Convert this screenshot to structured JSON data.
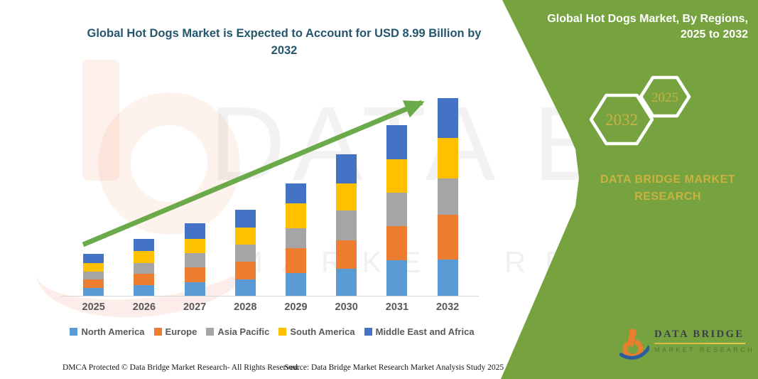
{
  "chart_data": {
    "type": "bar",
    "stacked": true,
    "title": "Global Hot Dogs Market is Expected to Account for USD 8.99 Billion by 2032",
    "title_lines": [
      "Global Hot Dogs Market is Expected to Account for USD 8.99 Billion by",
      "2032"
    ],
    "unit": "USD Billion",
    "categories": [
      "2025",
      "2026",
      "2027",
      "2028",
      "2029",
      "2030",
      "2031",
      "2032"
    ],
    "series": [
      {
        "name": "North America",
        "color": "#5b9bd5",
        "values": [
          0.36,
          0.48,
          0.62,
          0.74,
          1.02,
          1.24,
          1.61,
          1.65
        ]
      },
      {
        "name": "Europe",
        "color": "#ed7d31",
        "values": [
          0.38,
          0.52,
          0.66,
          0.8,
          1.13,
          1.29,
          1.56,
          2.02
        ]
      },
      {
        "name": "Asia Pacific",
        "color": "#a5a5a5",
        "values": [
          0.37,
          0.5,
          0.65,
          0.78,
          0.91,
          1.35,
          1.51,
          1.65
        ]
      },
      {
        "name": "South America",
        "color": "#ffc000",
        "values": [
          0.38,
          0.52,
          0.67,
          0.79,
          1.13,
          1.24,
          1.51,
          1.86
        ]
      },
      {
        "name": "Middle East and Africa",
        "color": "#4472c4",
        "values": [
          0.41,
          0.55,
          0.68,
          0.8,
          0.92,
          1.32,
          1.56,
          1.81
        ]
      }
    ],
    "totals": [
      1.9,
      2.57,
      3.28,
      3.91,
      5.11,
      6.44,
      7.75,
      8.99
    ],
    "ylim": [
      0,
      9
    ],
    "gridlines": false,
    "y_axis_visible": false,
    "legend_position": "bottom",
    "trend_arrow": "green upward arrow across bar tops",
    "arrow_color": "#6aaa4a"
  },
  "sidebar": {
    "header_lines": [
      "Global Hot Dogs Market, By Regions,",
      "2025 to 2032"
    ],
    "hexagons": [
      "2032",
      "2025"
    ],
    "brand_lines": [
      "DATA BRIDGE MARKET",
      "RESEARCH"
    ],
    "panel_color": "#76a33f",
    "accent_gold": "#c8b240",
    "logo": {
      "title": "DATA BRIDGE",
      "subtitle": "MARKET RESEARCH"
    }
  },
  "watermark": {
    "text_top": "DATA BRIDGE",
    "text_bottom": "MARKET RESEARCH"
  },
  "footer": {
    "left": "DMCA Protected © Data Bridge Market Research- All Rights Reserved.",
    "source": "Source: Data Bridge Market Research Market Analysis Study 2025"
  }
}
